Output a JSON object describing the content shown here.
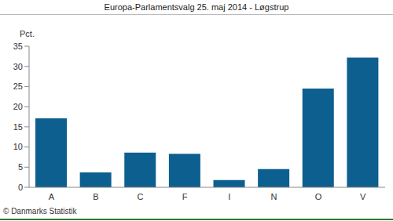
{
  "chart_data": {
    "type": "bar",
    "title": "Europa-Parlamentsvalg 25. maj 2014 - Løgstrup",
    "ylabel": "Pct.",
    "footnote": "© Danmarks Statistik",
    "categories": [
      "A",
      "B",
      "C",
      "F",
      "I",
      "N",
      "O",
      "V"
    ],
    "values": [
      17.1,
      3.7,
      8.6,
      8.3,
      1.8,
      4.5,
      24.5,
      32.2
    ],
    "color": "#0d5f8f",
    "ylim": [
      0,
      35
    ],
    "yticks": [
      0,
      5,
      10,
      15,
      20,
      25,
      30,
      35
    ],
    "grid": false
  }
}
